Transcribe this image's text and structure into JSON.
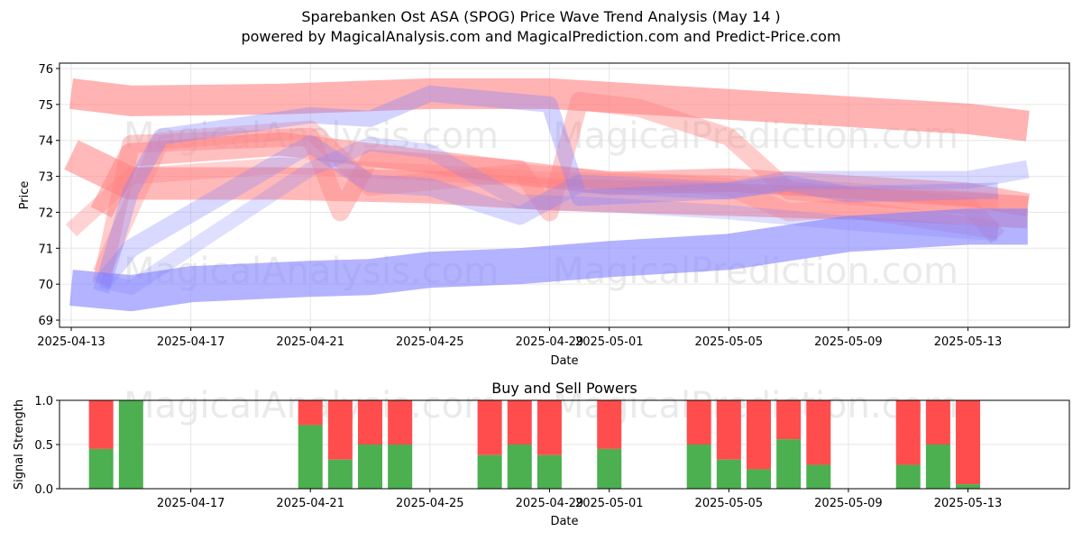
{
  "title": "Sparebanken Ost ASA (SPOG) Price Wave Trend Analysis (May 14 )",
  "subtitle": "powered by MagicalAnalysis.com and MagicalPrediction.com and Predict-Price.com",
  "watermarks": [
    "MagicalAnalysis.com",
    "MagicalPrediction.com"
  ],
  "colors": {
    "buy": "#4caf50",
    "sell": "#ff4d4d",
    "wave_red": "#ff8080",
    "wave_blue": "#8080ff"
  },
  "chart_data": [
    {
      "type": "line",
      "title": "",
      "xlabel": "Date",
      "ylabel": "Price",
      "ylim": [
        68.8,
        76.15
      ],
      "xlim": [
        "2025-04-13",
        "2025-05-16"
      ],
      "x_ticks": [
        "2025-04-13",
        "2025-04-17",
        "2025-04-21",
        "2025-04-25",
        "2025-04-29",
        "2025-05-01",
        "2025-05-05",
        "2025-05-09",
        "2025-05-13"
      ],
      "y_ticks": [
        69,
        70,
        71,
        72,
        73,
        74,
        75,
        76
      ],
      "grid": true,
      "bands": [
        {
          "color": "red",
          "width": 34,
          "opacity": 0.6,
          "points": [
            [
              "2025-04-13",
              75.3
            ],
            [
              "2025-04-15",
              75.1
            ],
            [
              "2025-04-20",
              75.15
            ],
            [
              "2025-04-25",
              75.3
            ],
            [
              "2025-04-29",
              75.3
            ],
            [
              "2025-05-01",
              75.2
            ],
            [
              "2025-05-05",
              75.0
            ],
            [
              "2025-05-09",
              74.8
            ],
            [
              "2025-05-13",
              74.6
            ],
            [
              "2025-05-15",
              74.4
            ]
          ]
        },
        {
          "color": "red",
          "width": 36,
          "opacity": 0.55,
          "points": [
            [
              "2025-04-13",
              73.6
            ],
            [
              "2025-04-15",
              72.8
            ],
            [
              "2025-04-20",
              72.8
            ],
            [
              "2025-04-25",
              72.7
            ],
            [
              "2025-04-29",
              72.5
            ],
            [
              "2025-05-01",
              72.45
            ],
            [
              "2025-05-05",
              72.35
            ],
            [
              "2025-05-09",
              72.25
            ],
            [
              "2025-05-13",
              72.1
            ],
            [
              "2025-05-15",
              72.0
            ]
          ]
        },
        {
          "color": "red",
          "width": 26,
          "opacity": 0.5,
          "points": [
            [
              "2025-04-14",
              72.0
            ],
            [
              "2025-04-15",
              73.6
            ],
            [
              "2025-04-20",
              73.9
            ],
            [
              "2025-04-25",
              73.4
            ],
            [
              "2025-04-29",
              73.0
            ],
            [
              "2025-05-01",
              72.8
            ],
            [
              "2025-05-05",
              72.9
            ],
            [
              "2025-05-09",
              72.7
            ],
            [
              "2025-05-13",
              72.5
            ],
            [
              "2025-05-15",
              72.2
            ]
          ]
        },
        {
          "color": "red",
          "width": 20,
          "opacity": 0.4,
          "points": [
            [
              "2025-04-14",
              70.0
            ],
            [
              "2025-04-15",
              73.9
            ],
            [
              "2025-04-21",
              74.1
            ],
            [
              "2025-04-22",
              72.0
            ],
            [
              "2025-04-23",
              73.5
            ],
            [
              "2025-04-28",
              73.2
            ],
            [
              "2025-04-29",
              72.0
            ],
            [
              "2025-04-30",
              75.1
            ],
            [
              "2025-05-02",
              74.9
            ],
            [
              "2025-05-05",
              74.1
            ],
            [
              "2025-05-07",
              72.6
            ],
            [
              "2025-05-13",
              72.2
            ],
            [
              "2025-05-14",
              71.3
            ]
          ]
        },
        {
          "color": "red",
          "width": 18,
          "opacity": 0.35,
          "points": [
            [
              "2025-04-13",
              71.5
            ],
            [
              "2025-04-15",
              73.0
            ],
            [
              "2025-04-20",
              73.3
            ],
            [
              "2025-04-25",
              73.1
            ],
            [
              "2025-04-29",
              72.9
            ],
            [
              "2025-05-05",
              72.8
            ],
            [
              "2025-05-09",
              72.6
            ],
            [
              "2025-05-14",
              72.3
            ]
          ]
        },
        {
          "color": "red",
          "width": 20,
          "opacity": 0.35,
          "points": [
            [
              "2025-04-14",
              70.3
            ],
            [
              "2025-04-16",
              74.0
            ],
            [
              "2025-04-21",
              74.3
            ],
            [
              "2025-04-23",
              72.7
            ],
            [
              "2025-04-28",
              73.1
            ],
            [
              "2025-05-01",
              72.9
            ],
            [
              "2025-05-05",
              72.7
            ],
            [
              "2025-05-07",
              72.0
            ],
            [
              "2025-05-09",
              72.1
            ],
            [
              "2025-05-14",
              71.5
            ]
          ]
        },
        {
          "color": "blue",
          "width": 40,
          "opacity": 0.6,
          "points": [
            [
              "2025-04-13",
              69.9
            ],
            [
              "2025-04-15",
              69.75
            ],
            [
              "2025-04-17",
              70.0
            ],
            [
              "2025-04-21",
              70.15
            ],
            [
              "2025-04-23",
              70.2
            ],
            [
              "2025-04-25",
              70.4
            ],
            [
              "2025-04-28",
              70.5
            ],
            [
              "2025-05-01",
              70.7
            ],
            [
              "2025-05-05",
              70.9
            ],
            [
              "2025-05-09",
              71.4
            ],
            [
              "2025-05-13",
              71.6
            ],
            [
              "2025-05-15",
              71.6
            ]
          ]
        },
        {
          "color": "blue",
          "width": 18,
          "opacity": 0.35,
          "points": [
            [
              "2025-04-14",
              69.8
            ],
            [
              "2025-04-15",
              72.6
            ],
            [
              "2025-04-16",
              74.1
            ],
            [
              "2025-04-21",
              74.7
            ],
            [
              "2025-04-23",
              74.6
            ],
            [
              "2025-04-25",
              75.3
            ],
            [
              "2025-04-29",
              75.0
            ],
            [
              "2025-04-30",
              72.4
            ],
            [
              "2025-05-05",
              72.6
            ],
            [
              "2025-05-07",
              72.8
            ],
            [
              "2025-05-09",
              72.5
            ],
            [
              "2025-05-14",
              72.6
            ]
          ]
        },
        {
          "color": "blue",
          "width": 20,
          "opacity": 0.3,
          "points": [
            [
              "2025-04-14",
              70.0
            ],
            [
              "2025-04-15",
              71.0
            ],
            [
              "2025-04-21",
              73.9
            ],
            [
              "2025-04-23",
              72.8
            ],
            [
              "2025-04-25",
              72.7
            ],
            [
              "2025-04-28",
              71.9
            ],
            [
              "2025-04-30",
              72.8
            ],
            [
              "2025-05-05",
              72.6
            ],
            [
              "2025-05-07",
              72.9
            ],
            [
              "2025-05-13",
              72.9
            ],
            [
              "2025-05-15",
              73.2
            ]
          ]
        },
        {
          "color": "blue",
          "width": 16,
          "opacity": 0.25,
          "points": [
            [
              "2025-04-14",
              70.1
            ],
            [
              "2025-04-15",
              69.9
            ],
            [
              "2025-04-21",
              73.2
            ],
            [
              "2025-04-23",
              73.9
            ],
            [
              "2025-04-25",
              73.7
            ],
            [
              "2025-04-28",
              72.3
            ],
            [
              "2025-05-01",
              72.2
            ],
            [
              "2025-05-05",
              72.0
            ],
            [
              "2025-05-09",
              71.7
            ],
            [
              "2025-05-14",
              71.4
            ]
          ]
        }
      ]
    },
    {
      "type": "bar",
      "title": "Buy and Sell Powers",
      "xlabel": "Date",
      "ylabel": "Signal Strength",
      "ylim": [
        0,
        1.0
      ],
      "xlim": [
        "2025-04-13",
        "2025-05-16"
      ],
      "x_ticks": [
        "2025-04-17",
        "2025-04-21",
        "2025-04-25",
        "2025-04-29",
        "2025-05-01",
        "2025-05-05",
        "2025-05-09",
        "2025-05-13"
      ],
      "y_ticks": [
        "0.0",
        "0.5",
        "1.0"
      ],
      "grid": true,
      "series": [
        {
          "name": "",
          "color": "#4caf50"
        },
        {
          "name": "",
          "color": "#ff4d4d"
        }
      ],
      "bars": [
        {
          "date": "2025-04-14",
          "buy": 0.45
        },
        {
          "date": "2025-04-15",
          "buy": 1.0
        },
        {
          "date": "2025-04-21",
          "buy": 0.72
        },
        {
          "date": "2025-04-22",
          "buy": 0.33
        },
        {
          "date": "2025-04-23",
          "buy": 0.5
        },
        {
          "date": "2025-04-24",
          "buy": 0.5
        },
        {
          "date": "2025-04-27",
          "buy": 0.38
        },
        {
          "date": "2025-04-28",
          "buy": 0.5
        },
        {
          "date": "2025-04-29",
          "buy": 0.38
        },
        {
          "date": "2025-05-01",
          "buy": 0.45
        },
        {
          "date": "2025-05-04",
          "buy": 0.5
        },
        {
          "date": "2025-05-05",
          "buy": 0.33
        },
        {
          "date": "2025-05-06",
          "buy": 0.22
        },
        {
          "date": "2025-05-07",
          "buy": 0.56
        },
        {
          "date": "2025-05-08",
          "buy": 0.27
        },
        {
          "date": "2025-05-11",
          "buy": 0.27
        },
        {
          "date": "2025-05-12",
          "buy": 0.5
        },
        {
          "date": "2025-05-13",
          "buy": 0.05
        }
      ]
    }
  ]
}
